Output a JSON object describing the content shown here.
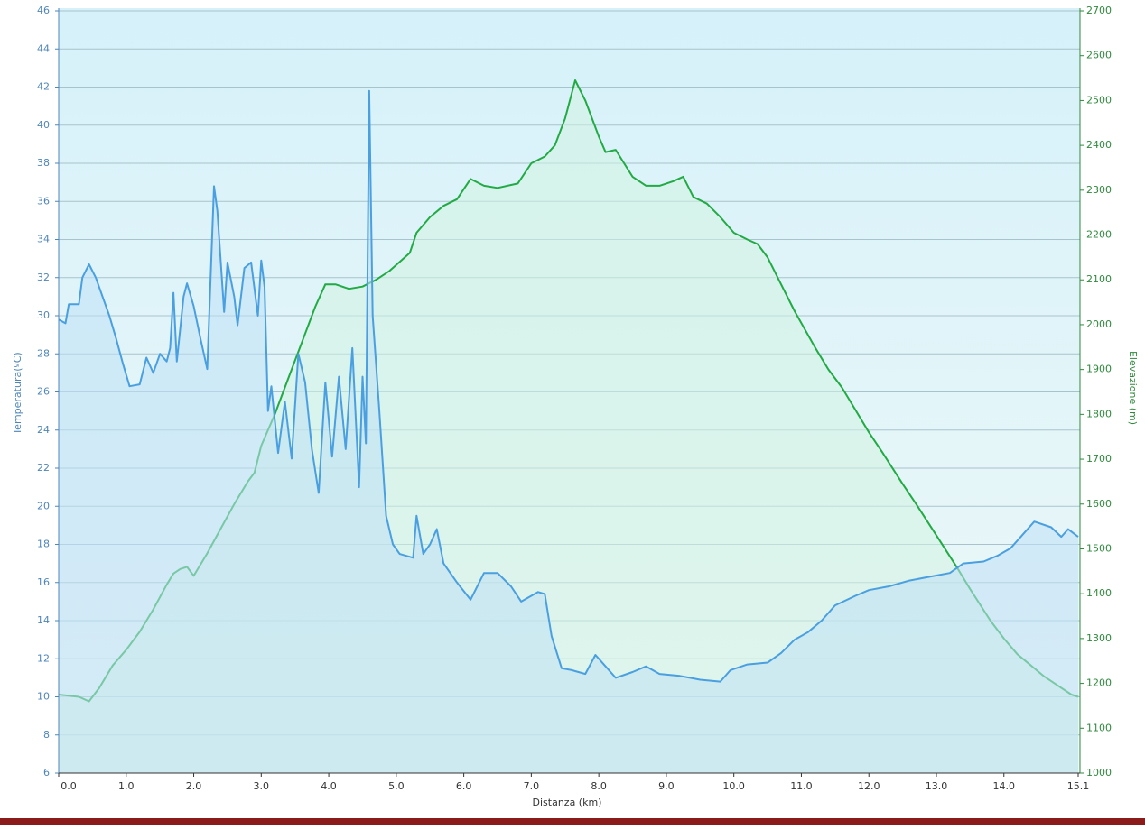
{
  "chart_data": {
    "type": "line",
    "xlabel": "Distanza  (km)",
    "ylabel": "Temperatura(ºC)",
    "y2label": "Elevazione (m)",
    "xlim": [
      0,
      15.1
    ],
    "ylim": [
      6,
      46
    ],
    "y2lim": [
      1000,
      2700
    ],
    "grid": true,
    "xticks": [
      {
        "value": 0,
        "label": "0.0"
      },
      {
        "value": 1,
        "label": "1.0"
      },
      {
        "value": 2,
        "label": "2.0"
      },
      {
        "value": 3,
        "label": "3.0"
      },
      {
        "value": 4,
        "label": "4.0"
      },
      {
        "value": 5,
        "label": "5.0"
      },
      {
        "value": 6,
        "label": "6.0"
      },
      {
        "value": 7,
        "label": "7.0"
      },
      {
        "value": 8,
        "label": "8.0"
      },
      {
        "value": 9,
        "label": "9.0"
      },
      {
        "value": 10,
        "label": "10.0"
      },
      {
        "value": 11,
        "label": "11.0"
      },
      {
        "value": 12,
        "label": "12.0"
      },
      {
        "value": 13,
        "label": "13.0"
      },
      {
        "value": 14,
        "label": "14.0"
      },
      15.1
    ],
    "yticks": [
      6,
      8,
      10,
      12,
      14,
      16,
      18,
      20,
      22,
      24,
      26,
      28,
      30,
      32,
      34,
      36,
      38,
      40,
      42,
      44,
      46
    ],
    "y2ticks": [
      1000,
      1100,
      1200,
      1300,
      1400,
      1500,
      1600,
      1700,
      1800,
      1900,
      2000,
      2100,
      2200,
      2300,
      2400,
      2500,
      2600,
      2700
    ],
    "series": [
      {
        "color": "#4a9fe0",
        "fill": "#bfe0f5",
        "x": [
          0,
          0.1,
          0.15,
          0.3,
          0.35,
          0.45,
          0.55,
          0.65,
          0.75,
          0.85,
          0.95,
          1.05,
          1.2,
          1.3,
          1.4,
          1.5,
          1.6,
          1.65,
          1.7,
          1.75,
          1.85,
          1.9,
          2.0,
          2.1,
          2.2,
          2.3,
          2.35,
          2.45,
          2.5,
          2.6,
          2.65,
          2.75,
          2.85,
          2.95,
          3.0,
          3.05,
          3.1,
          3.15,
          3.25,
          3.35,
          3.45,
          3.55,
          3.65,
          3.75,
          3.85,
          3.95,
          4.05,
          4.15,
          4.25,
          4.35,
          4.45,
          4.5,
          4.55,
          4.6,
          4.65,
          4.75,
          4.85,
          4.95,
          5.05,
          5.25,
          5.3,
          5.4,
          5.5,
          5.6,
          5.7,
          5.9,
          6.1,
          6.3,
          6.5,
          6.7,
          6.85,
          7.1,
          7.2,
          7.3,
          7.45,
          7.6,
          7.8,
          7.95,
          8.1,
          8.25,
          8.5,
          8.7,
          8.9,
          9.2,
          9.5,
          9.8,
          9.95,
          10.2,
          10.5,
          10.7,
          10.9,
          11.1,
          11.3,
          11.5,
          11.8,
          12.0,
          12.3,
          12.6,
          12.9,
          13.2,
          13.4,
          13.7,
          13.9,
          14.1,
          14.3,
          14.45,
          14.7,
          14.85,
          14.95,
          15.1
        ],
        "values": [
          29.8,
          29.6,
          30.6,
          30.6,
          32.0,
          32.7,
          32.0,
          31.0,
          30.0,
          28.8,
          27.5,
          26.3,
          26.4,
          27.8,
          27.0,
          28.0,
          27.6,
          28.3,
          31.2,
          27.6,
          31.0,
          31.7,
          30.5,
          28.8,
          27.2,
          36.8,
          35.5,
          30.2,
          32.8,
          31.0,
          29.5,
          32.5,
          32.8,
          30.0,
          32.9,
          31.5,
          25.0,
          26.3,
          22.8,
          25.5,
          22.5,
          28.0,
          26.5,
          23.0,
          20.7,
          26.5,
          22.6,
          26.8,
          23.0,
          28.3,
          21.0,
          26.8,
          23.3,
          41.8,
          30.0,
          25.0,
          19.5,
          18.0,
          17.5,
          17.3,
          19.5,
          17.5,
          18.0,
          18.8,
          17.0,
          16.0,
          15.1,
          16.5,
          16.5,
          15.8,
          15.0,
          15.5,
          15.4,
          13.2,
          11.5,
          11.4,
          11.2,
          12.2,
          11.6,
          11.0,
          11.3,
          11.6,
          11.2,
          11.1,
          10.9,
          10.8,
          11.4,
          11.7,
          11.8,
          12.3,
          13.0,
          13.4,
          14.0,
          14.8,
          15.3,
          15.6,
          15.8,
          16.1,
          16.3,
          16.5,
          17.0,
          17.1,
          17.4,
          17.8,
          18.6,
          19.2,
          18.9,
          18.4,
          18.8,
          18.4
        ]
      },
      {
        "color": "#22aa44",
        "fill": "#d2f3e2",
        "axis": "y2",
        "x": [
          0,
          0.3,
          0.45,
          0.6,
          0.8,
          1.0,
          1.1,
          1.2,
          1.4,
          1.6,
          1.7,
          1.8,
          1.9,
          2.0,
          2.1,
          2.2,
          2.4,
          2.6,
          2.8,
          2.9,
          3.0,
          3.2,
          3.4,
          3.6,
          3.8,
          3.95,
          4.1,
          4.3,
          4.5,
          4.7,
          4.9,
          5.2,
          5.3,
          5.5,
          5.7,
          5.9,
          6.1,
          6.3,
          6.5,
          6.8,
          7.0,
          7.2,
          7.35,
          7.5,
          7.65,
          7.8,
          8.0,
          8.1,
          8.25,
          8.5,
          8.7,
          8.9,
          9.1,
          9.25,
          9.4,
          9.6,
          9.8,
          10.0,
          10.2,
          10.35,
          10.5,
          10.7,
          10.9,
          11.2,
          11.4,
          11.6,
          11.8,
          12.0,
          12.2,
          12.5,
          12.7,
          13.0,
          13.3,
          13.5,
          13.8,
          14.0,
          14.2,
          14.4,
          14.6,
          14.8,
          15.0,
          15.1
        ],
        "values": [
          1175,
          1170,
          1160,
          1190,
          1240,
          1275,
          1295,
          1315,
          1365,
          1420,
          1445,
          1455,
          1460,
          1440,
          1465,
          1490,
          1545,
          1600,
          1650,
          1670,
          1730,
          1800,
          1880,
          1960,
          2040,
          2090,
          2090,
          2080,
          2085,
          2100,
          2120,
          2160,
          2205,
          2240,
          2265,
          2280,
          2325,
          2310,
          2305,
          2315,
          2360,
          2375,
          2400,
          2460,
          2545,
          2500,
          2420,
          2385,
          2390,
          2330,
          2310,
          2310,
          2320,
          2330,
          2285,
          2270,
          2240,
          2205,
          2190,
          2180,
          2150,
          2090,
          2030,
          1950,
          1900,
          1860,
          1810,
          1760,
          1715,
          1645,
          1600,
          1530,
          1460,
          1410,
          1340,
          1300,
          1265,
          1240,
          1215,
          1195,
          1175,
          1170
        ]
      }
    ]
  }
}
